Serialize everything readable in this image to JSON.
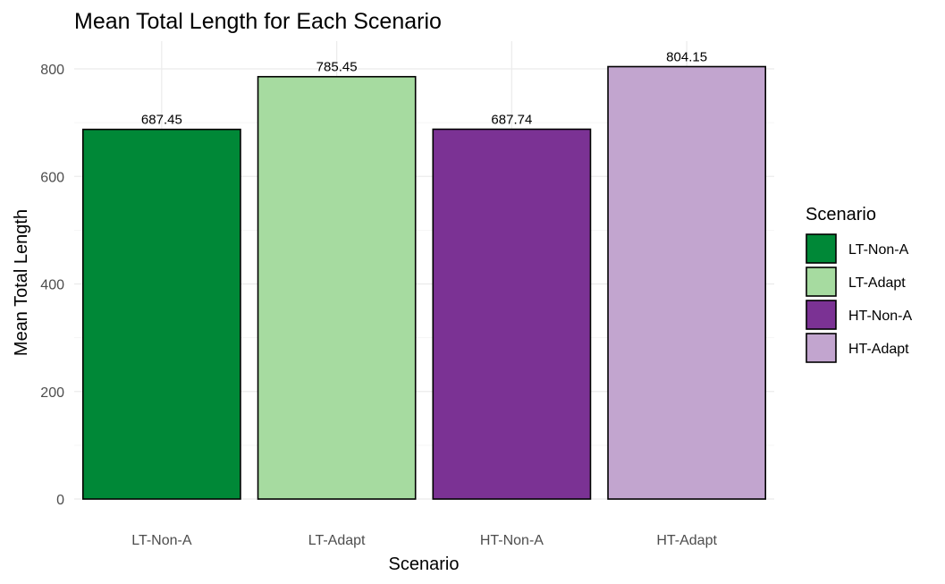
{
  "chart_data": {
    "type": "bar",
    "title": "Mean Total Length for Each Scenario",
    "xlabel": "Scenario",
    "ylabel": "Mean Total Length",
    "categories": [
      "LT-Non-A",
      "LT-Adapt",
      "HT-Non-A",
      "HT-Adapt"
    ],
    "values": [
      687.45,
      785.45,
      687.74,
      804.15
    ],
    "data_labels": [
      "687.45",
      "785.45",
      "687.74",
      "804.15"
    ],
    "colors": [
      "#008837",
      "#a6dba0",
      "#7b3294",
      "#c2a5cf"
    ],
    "ylim": [
      0,
      800
    ],
    "yticks": [
      0,
      200,
      400,
      600,
      800
    ],
    "grid": true,
    "legend": {
      "title": "Scenario",
      "placement": "right",
      "entries": [
        "LT-Non-A",
        "LT-Adapt",
        "HT-Non-A",
        "HT-Adapt"
      ]
    }
  }
}
